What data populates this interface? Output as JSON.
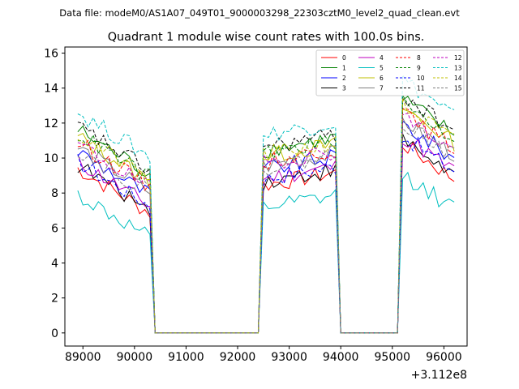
{
  "chart_data": {
    "type": "line",
    "suptitle": "Data file: modeM0/AS1A07_049T01_9000003298_22303cztM0_level2_quad_clean.evt",
    "title": "Quadrant 1 module wise count rates with 100.0s bins.",
    "xlabel": "",
    "ylabel": "",
    "x_offset_label": "+3.112e8",
    "xlim": [
      88650,
      96450
    ],
    "ylim": [
      -0.75,
      16.35
    ],
    "xticks": [
      89000,
      90000,
      91000,
      92000,
      93000,
      94000,
      95000,
      96000
    ],
    "xtick_labels": [
      "89000",
      "90000",
      "91000",
      "92000",
      "93000",
      "94000",
      "95000",
      "96000"
    ],
    "yticks": [
      0,
      2,
      4,
      6,
      8,
      10,
      12,
      14,
      16
    ],
    "ytick_labels": [
      "0",
      "2",
      "4",
      "6",
      "8",
      "10",
      "12",
      "14",
      "16"
    ],
    "grid": false,
    "legend_position": "top-right",
    "legend_columns": 4,
    "series": [
      {
        "name": "0",
        "color": "#ff0000",
        "dash": "solid",
        "base": 7.8,
        "slope": -0.1
      },
      {
        "name": "1",
        "color": "#008000",
        "dash": "solid",
        "base": 10.0,
        "slope": -0.1
      },
      {
        "name": "2",
        "color": "#0000ff",
        "dash": "solid",
        "base": 8.8,
        "slope": -0.1
      },
      {
        "name": "3",
        "color": "#000000",
        "dash": "solid",
        "base": 8.0,
        "slope": -0.1
      },
      {
        "name": "4",
        "color": "#bf00bf",
        "dash": "solid",
        "base": 8.2,
        "slope": -0.1
      },
      {
        "name": "5",
        "color": "#00bfbf",
        "dash": "solid",
        "base": 6.3,
        "slope": -0.1
      },
      {
        "name": "6",
        "color": "#bfbf00",
        "dash": "solid",
        "base": 9.6,
        "slope": -0.1
      },
      {
        "name": "7",
        "color": "#808080",
        "dash": "solid",
        "base": 9.0,
        "slope": -0.1
      },
      {
        "name": "8",
        "color": "#ff0000",
        "dash": "dashed",
        "base": 9.3,
        "slope": -0.1
      },
      {
        "name": "9",
        "color": "#008000",
        "dash": "dashed",
        "base": 9.8,
        "slope": -0.1
      },
      {
        "name": "10",
        "color": "#0000ff",
        "dash": "dashed",
        "base": 8.2,
        "slope": -0.1
      },
      {
        "name": "11",
        "color": "#000000",
        "dash": "dashed",
        "base": 10.2,
        "slope": -0.1
      },
      {
        "name": "12",
        "color": "#bf00bf",
        "dash": "dashed",
        "base": 9.2,
        "slope": -0.1
      },
      {
        "name": "13",
        "color": "#00bfbf",
        "dash": "dashed",
        "base": 11.0,
        "slope": -0.1
      },
      {
        "name": "14",
        "color": "#bfbf00",
        "dash": "dashed",
        "base": 9.7,
        "slope": -0.1
      },
      {
        "name": "15",
        "color": "#808080",
        "dash": "dashed",
        "base": 8.9,
        "slope": -0.1
      }
    ],
    "segments": [
      {
        "start": 88900,
        "end": 90300,
        "factor": 1.0,
        "trend": -0.18
      },
      {
        "start": 92500,
        "end": 93900,
        "factor": 0.9,
        "trend": 0.05
      },
      {
        "start": 95200,
        "end": 96200,
        "factor": 1.15,
        "trend": -0.2
      }
    ],
    "x_step": 100,
    "x_start": 88900,
    "x_end": 96200
  }
}
